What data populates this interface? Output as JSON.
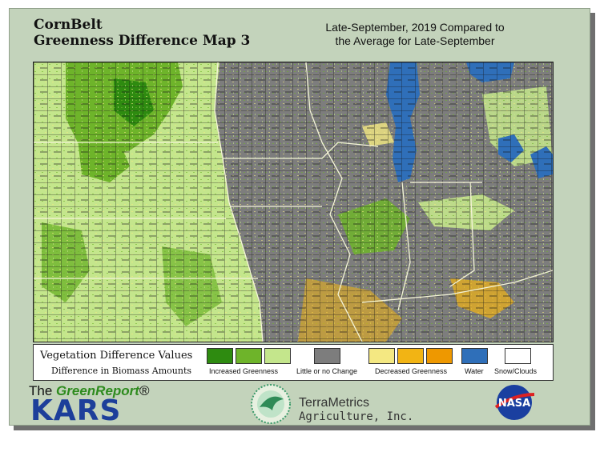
{
  "header": {
    "title_line1": "CornBelt",
    "title_line2": "Greenness Difference Map 3",
    "subtitle_line1": "Late-September, 2019 Compared to",
    "subtitle_line2": "the Average for Late-September"
  },
  "legend": {
    "title": "Vegetation Difference Values",
    "subtitle": "Difference in Biomass Amounts",
    "groups": [
      {
        "label": "Increased Greenness",
        "colors": [
          "#2e8b10",
          "#6eb42a",
          "#c4e68c"
        ]
      },
      {
        "label": "Little or no Change",
        "colors": [
          "#7d7d7d"
        ]
      },
      {
        "label": "Decreased Greenness",
        "colors": [
          "#f4e882",
          "#f2b414",
          "#ee9800"
        ]
      },
      {
        "label": "Water",
        "colors": [
          "#2f6fb9"
        ]
      },
      {
        "label": "Snow/Clouds",
        "colors": [
          "#ffffff"
        ]
      }
    ]
  },
  "footer": {
    "green_report_prefix": "The ",
    "green_report_name": "GreenReport",
    "green_report_mark": "®",
    "kars": "KARS",
    "terrametrics_name": "TerraMetrics",
    "terrametrics_sub": "Agriculture, Inc.",
    "nasa": "NASA"
  },
  "map_colors": {
    "increased_high": "#2e8b10",
    "increased_mid": "#6eb42a",
    "increased_low": "#c4e68c",
    "no_change": "#7d7d7d",
    "decreased_low": "#f4e882",
    "decreased_mid": "#f2b414",
    "decreased_high": "#ee9800",
    "water": "#2f6fb9",
    "county_lines": "#111111",
    "state_lines": "#f4f4d8"
  }
}
